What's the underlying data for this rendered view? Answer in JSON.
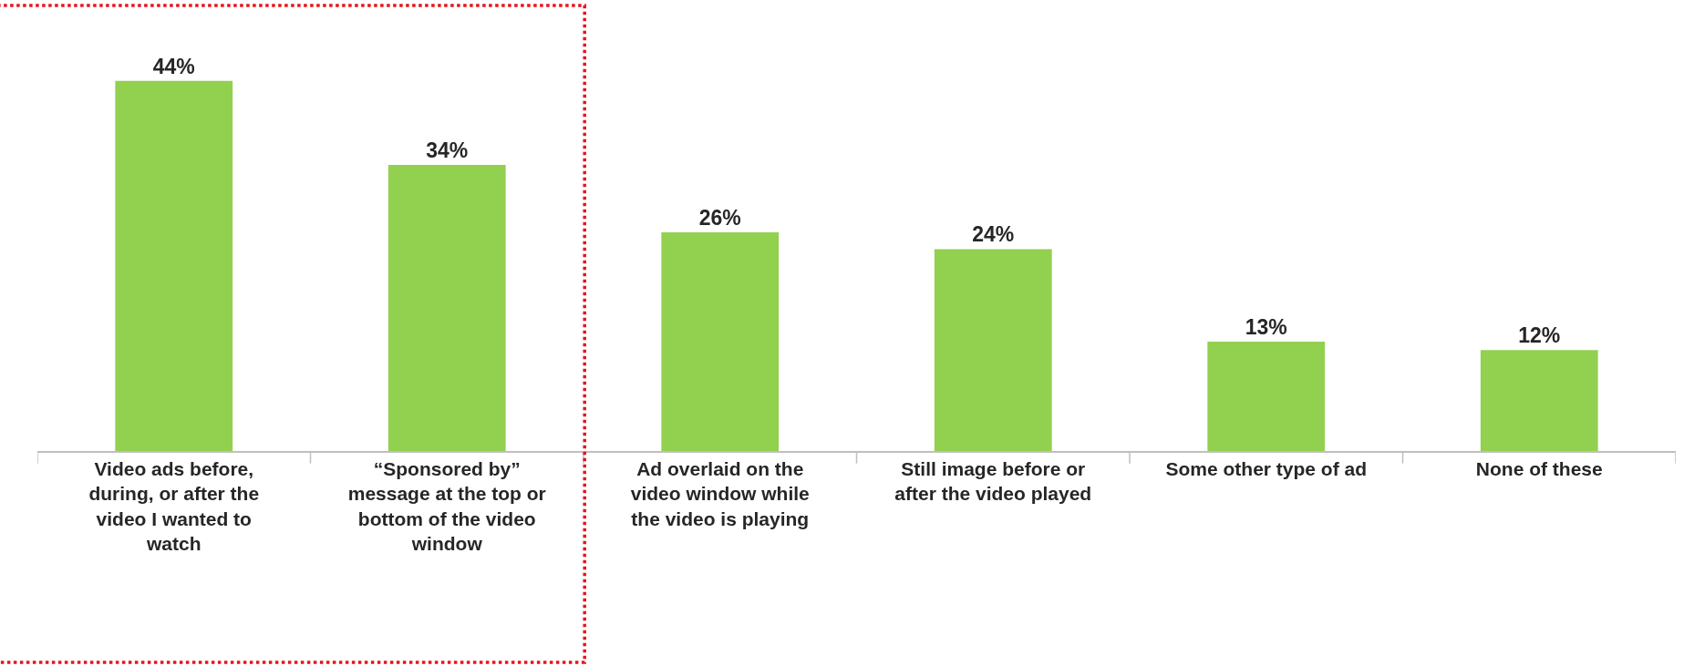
{
  "chart_data": {
    "type": "bar",
    "categories": [
      "Video ads before,\nduring, or after the\nvideo I wanted to\nwatch",
      "“Sponsored by”\nmessage at the top or\nbottom of the video\nwindow",
      "Ad overlaid on the\nvideo window while\nthe video is playing",
      "Still image before or\nafter the video played",
      "Some other type of ad",
      "None of these"
    ],
    "values": [
      44,
      34,
      26,
      24,
      13,
      12
    ],
    "value_labels": [
      "44%",
      "34%",
      "26%",
      "24%",
      "13%",
      "12%"
    ],
    "color": "#92d050",
    "tick_labels": "x"
  }
}
